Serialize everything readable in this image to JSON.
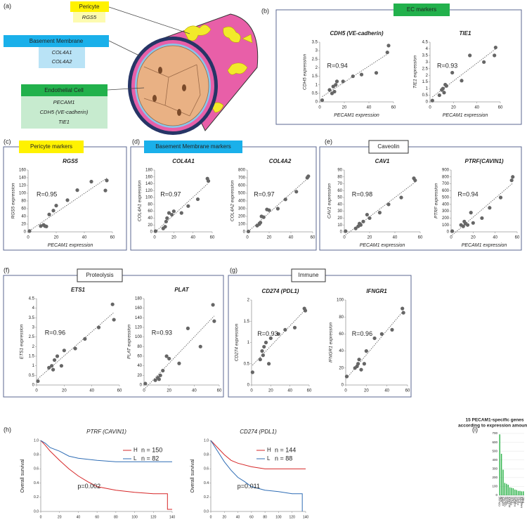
{
  "figure": {
    "panels": [
      "(a)",
      "(b)",
      "(c)",
      "(d)",
      "(e)",
      "(f)",
      "(g)",
      "(h)",
      "(i)"
    ],
    "groups": [
      "EC markers",
      "Pericyte markers",
      "Basement Membrane markers",
      "Caveolin",
      "Proteolysis",
      "Immune"
    ]
  },
  "diagram": {
    "pericyte": {
      "title": "Pericyte",
      "genes": [
        "RGS5"
      ]
    },
    "basement_membrane": {
      "title": "Basement Membrane",
      "genes": [
        "COL4A1",
        "COL4A2"
      ]
    },
    "endothelial_cell": {
      "title": "Endothelial Cell",
      "genes": [
        "PECAM1",
        "CDH5 (VE-cadherin)",
        "TIE1"
      ]
    }
  },
  "chart_data": [
    {
      "type": "scatter",
      "title": "CDH5 (VE-cadherin)",
      "xlabel": "PECAM1 expression",
      "ylabel": "CDH5 expression",
      "annotation": "R=0.94",
      "color": "#666666",
      "trendline": true,
      "x": [
        2,
        8,
        10,
        11,
        12,
        13,
        14,
        19,
        27,
        34,
        46,
        55,
        56
      ],
      "values": [
        0.1,
        0.7,
        0.5,
        0.9,
        0.6,
        1.0,
        1.2,
        1.2,
        1.5,
        1.6,
        1.7,
        2.9,
        3.3
      ],
      "xlim": [
        0,
        60
      ],
      "xticks": [
        0,
        20,
        40,
        60
      ],
      "ylim": [
        0,
        3.5
      ],
      "yticks": [
        0,
        0.5,
        1,
        1.5,
        2,
        2.5,
        3,
        3.5
      ]
    },
    {
      "type": "scatter",
      "title": "TIE1",
      "xlabel": "PECAM1 expression",
      "ylabel": "TIE1 expression",
      "annotation": "R=0.93",
      "color": "#666666",
      "trendline": true,
      "x": [
        2,
        8,
        10,
        11,
        12,
        13,
        14,
        19,
        27,
        34,
        46,
        55,
        56
      ],
      "values": [
        0.1,
        0.5,
        0.9,
        1.0,
        0.7,
        1.3,
        1.2,
        2.2,
        1.6,
        3.5,
        3.0,
        3.5,
        4.1
      ],
      "xlim": [
        0,
        60
      ],
      "xticks": [
        0,
        20,
        40,
        60
      ],
      "ylim": [
        0,
        4.5
      ],
      "yticks": [
        0,
        0.5,
        1,
        1.5,
        2,
        2.5,
        3,
        3.5,
        4,
        4.5
      ]
    },
    {
      "type": "scatter",
      "title": "RGS5",
      "xlabel": "PECAM1 expression",
      "ylabel": "RGS5 expression",
      "annotation": "R=0.95",
      "color": "#666666",
      "trendline": true,
      "x": [
        1,
        9,
        11,
        12,
        13,
        15,
        18,
        20,
        28,
        35,
        45,
        55,
        56
      ],
      "values": [
        2,
        15,
        18,
        15,
        14,
        45,
        55,
        68,
        82,
        108,
        130,
        107,
        133
      ],
      "xlim": [
        0,
        60
      ],
      "xticks": [
        0,
        20,
        40,
        60
      ],
      "ylim": [
        0,
        160
      ],
      "yticks": [
        0,
        20,
        40,
        60,
        80,
        100,
        120,
        140,
        160
      ]
    },
    {
      "type": "scatter",
      "title": "COL4A1",
      "ylabel": "COL4A1 expression",
      "annotation": "R=0.97",
      "color": "#666666",
      "trendline": true,
      "x": [
        1,
        9,
        11,
        12,
        13,
        15,
        18,
        20,
        28,
        35,
        45,
        55,
        56
      ],
      "values": [
        2,
        10,
        15,
        30,
        40,
        55,
        50,
        60,
        55,
        75,
        95,
        155,
        148
      ],
      "xlim": [
        0,
        60
      ],
      "xticks": [
        0,
        20,
        40,
        60
      ],
      "ylim": [
        0,
        180
      ],
      "yticks": [
        0,
        20,
        40,
        60,
        80,
        100,
        120,
        140,
        160,
        180
      ]
    },
    {
      "type": "scatter",
      "title": "COL4A2",
      "ylabel": "COL4A2 expression",
      "annotation": "R=0.97",
      "color": "#666666",
      "trendline": true,
      "x": [
        1,
        9,
        11,
        12,
        13,
        15,
        18,
        20,
        28,
        35,
        45,
        55,
        56
      ],
      "values": [
        5,
        80,
        100,
        120,
        200,
        190,
        290,
        280,
        300,
        420,
        520,
        700,
        720
      ],
      "xlim": [
        0,
        60
      ],
      "xticks": [
        0,
        20,
        40,
        60
      ],
      "ylim": [
        0,
        800
      ],
      "yticks": [
        0,
        100,
        200,
        300,
        400,
        500,
        600,
        700,
        800
      ]
    },
    {
      "type": "scatter",
      "title": "CAV1",
      "xlabel": "PECAM1 expression",
      "ylabel": "CAV1 expression",
      "annotation": "R=0.98",
      "color": "#666666",
      "trendline": true,
      "x": [
        1,
        9,
        11,
        12,
        13,
        15,
        18,
        20,
        28,
        35,
        45,
        55,
        56
      ],
      "values": [
        1,
        5,
        8,
        12,
        10,
        15,
        25,
        20,
        28,
        40,
        50,
        78,
        75
      ],
      "xlim": [
        0,
        60
      ],
      "xticks": [
        0,
        20,
        40,
        60
      ],
      "ylim": [
        0,
        90
      ],
      "yticks": [
        0,
        10,
        20,
        30,
        40,
        50,
        60,
        70,
        80,
        90
      ]
    },
    {
      "type": "scatter",
      "title": "PTRF(CAVIN1)",
      "xlabel": "PECAM1 expression",
      "ylabel": "PTRF expression",
      "annotation": "R=0.94",
      "color": "#666666",
      "trendline": true,
      "x": [
        1,
        9,
        11,
        12,
        13,
        15,
        18,
        20,
        28,
        35,
        45,
        55,
        56
      ],
      "values": [
        10,
        100,
        80,
        150,
        120,
        100,
        280,
        130,
        200,
        350,
        500,
        750,
        800
      ],
      "xlim": [
        0,
        60
      ],
      "xticks": [
        0,
        20,
        40,
        60
      ],
      "ylim": [
        0,
        900
      ],
      "yticks": [
        0,
        100,
        200,
        300,
        400,
        500,
        600,
        700,
        800,
        900
      ]
    },
    {
      "type": "scatter",
      "title": "ETS1",
      "ylabel": "ETS1 expression",
      "annotation": "R=0.96",
      "color": "#666666",
      "trendline": true,
      "x": [
        1,
        9,
        11,
        12,
        13,
        15,
        18,
        20,
        28,
        35,
        45,
        55,
        56
      ],
      "values": [
        0.2,
        0.9,
        1.0,
        0.8,
        1.3,
        1.5,
        1.0,
        1.8,
        1.9,
        2.4,
        3.0,
        4.2,
        3.4
      ],
      "xlim": [
        0,
        60
      ],
      "xticks": [
        0,
        20,
        40,
        60
      ],
      "ylim": [
        0,
        4.5
      ],
      "yticks": [
        0,
        0.5,
        1,
        1.5,
        2,
        2.5,
        3,
        3.5,
        4,
        4.5
      ]
    },
    {
      "type": "scatter",
      "title": "PLAT",
      "ylabel": "PLAT expression",
      "annotation": "R=0.93",
      "color": "#666666",
      "trendline": true,
      "x": [
        1,
        9,
        11,
        12,
        13,
        15,
        18,
        20,
        28,
        35,
        45,
        55,
        56
      ],
      "values": [
        3,
        10,
        15,
        12,
        20,
        30,
        60,
        55,
        45,
        118,
        80,
        167,
        133
      ],
      "xlim": [
        0,
        60
      ],
      "xticks": [
        0,
        20,
        40,
        60
      ],
      "ylim": [
        0,
        180
      ],
      "yticks": [
        0,
        20,
        40,
        60,
        80,
        100,
        120,
        140,
        160,
        180
      ]
    },
    {
      "type": "scatter",
      "title": "CD274 (PDL1)",
      "ylabel": "CD274 expression",
      "annotation": "R=0.93",
      "color": "#666666",
      "trendline": true,
      "x": [
        1,
        9,
        11,
        12,
        13,
        15,
        18,
        20,
        28,
        35,
        45,
        55,
        56
      ],
      "values": [
        0.3,
        0.6,
        0.8,
        0.7,
        0.9,
        1.0,
        0.5,
        1.1,
        1.2,
        1.3,
        1.35,
        1.8,
        1.75
      ],
      "xlim": [
        0,
        60
      ],
      "xticks": [
        0,
        20,
        40,
        60
      ],
      "ylim": [
        0,
        2
      ],
      "yticks": [
        0,
        0.5,
        1,
        1.5,
        2
      ]
    },
    {
      "type": "scatter",
      "title": "IFNGR1",
      "ylabel": "IFNGR1 expression",
      "annotation": "R=0.96",
      "color": "#666666",
      "trendline": true,
      "x": [
        1,
        9,
        11,
        12,
        13,
        15,
        18,
        20,
        28,
        35,
        45,
        55,
        56
      ],
      "values": [
        10,
        20,
        22,
        25,
        30,
        18,
        25,
        40,
        55,
        60,
        65,
        90,
        85
      ],
      "xlim": [
        0,
        60
      ],
      "xticks": [
        0,
        20,
        40,
        60
      ],
      "ylim": [
        0,
        100
      ],
      "yticks": [
        0,
        20,
        40,
        60,
        80,
        100
      ]
    },
    {
      "type": "line",
      "title": "PTRF (CAVIN1)",
      "ylabel": "Overall survival",
      "annotation": "p=0.002",
      "series": [
        {
          "name": "H",
          "label": "n = 150",
          "color": "#d62728",
          "x": [
            0,
            5,
            10,
            20,
            30,
            40,
            50,
            60,
            80,
            100,
            120,
            135,
            135,
            140
          ],
          "values": [
            1,
            0.93,
            0.85,
            0.72,
            0.6,
            0.5,
            0.42,
            0.35,
            0.3,
            0.27,
            0.25,
            0.25,
            0.03,
            0.03
          ]
        },
        {
          "name": "L",
          "label": "n = 82",
          "color": "#2f6db5",
          "x": [
            0,
            5,
            10,
            20,
            30,
            40,
            60,
            80,
            100,
            120,
            140
          ],
          "values": [
            1,
            0.96,
            0.9,
            0.85,
            0.78,
            0.75,
            0.72,
            0.7,
            0.7,
            0.7,
            0.7
          ]
        }
      ],
      "xlim": [
        0,
        140
      ],
      "xticks": [
        0,
        20,
        40,
        60,
        80,
        100,
        120,
        140
      ],
      "ylim": [
        0,
        1
      ],
      "yticks": [
        {
          "value": 0,
          "label": "0.0"
        },
        0.2,
        0.4,
        0.6,
        0.8,
        {
          "value": 1,
          "label": "1.0"
        }
      ]
    },
    {
      "type": "line",
      "title": "CD274 (PDL1)",
      "ylabel": "Overall survival",
      "annotation": "p=0.011",
      "series": [
        {
          "name": "H",
          "label": "n = 144",
          "color": "#d62728",
          "x": [
            0,
            10,
            20,
            30,
            40,
            60,
            80,
            100,
            140
          ],
          "values": [
            1,
            0.9,
            0.8,
            0.72,
            0.68,
            0.63,
            0.6,
            0.6,
            0.6
          ]
        },
        {
          "name": "L",
          "label": "n = 88",
          "color": "#2f6db5",
          "x": [
            0,
            10,
            20,
            30,
            40,
            50,
            60,
            80,
            100,
            120,
            135,
            135
          ],
          "values": [
            1,
            0.85,
            0.7,
            0.58,
            0.48,
            0.42,
            0.35,
            0.3,
            0.28,
            0.25,
            0.25,
            0
          ]
        }
      ],
      "xlim": [
        0,
        140
      ],
      "xticks": [
        0,
        20,
        40,
        60,
        80,
        100,
        120,
        140
      ],
      "ylim": [
        0,
        1
      ],
      "yticks": [
        {
          "value": 0,
          "label": "0.0"
        },
        0.2,
        0.4,
        0.6,
        0.8,
        {
          "value": 1,
          "label": "1.0"
        }
      ]
    },
    {
      "type": "bar",
      "title": "15 PECAM1-specific genes",
      "subtitle": "according to expression amounts",
      "color": "#2db34a",
      "categories": [
        "COL4A2",
        "A2M",
        "IGFBP5",
        "COL4A1",
        "HCLS1",
        "RGS5",
        "PDGFRA",
        "GNG11",
        "CAV1",
        "KGFLP1",
        "PRG1",
        "FOXF1",
        "GJA1",
        "FAM101B",
        "THBD"
      ],
      "values": [
        690,
        470,
        290,
        140,
        130,
        120,
        90,
        85,
        80,
        65,
        60,
        50,
        50,
        45,
        45
      ],
      "ylim": [
        0,
        700
      ],
      "yticks": [
        0,
        100,
        200,
        300,
        400,
        500,
        600,
        700
      ]
    }
  ]
}
